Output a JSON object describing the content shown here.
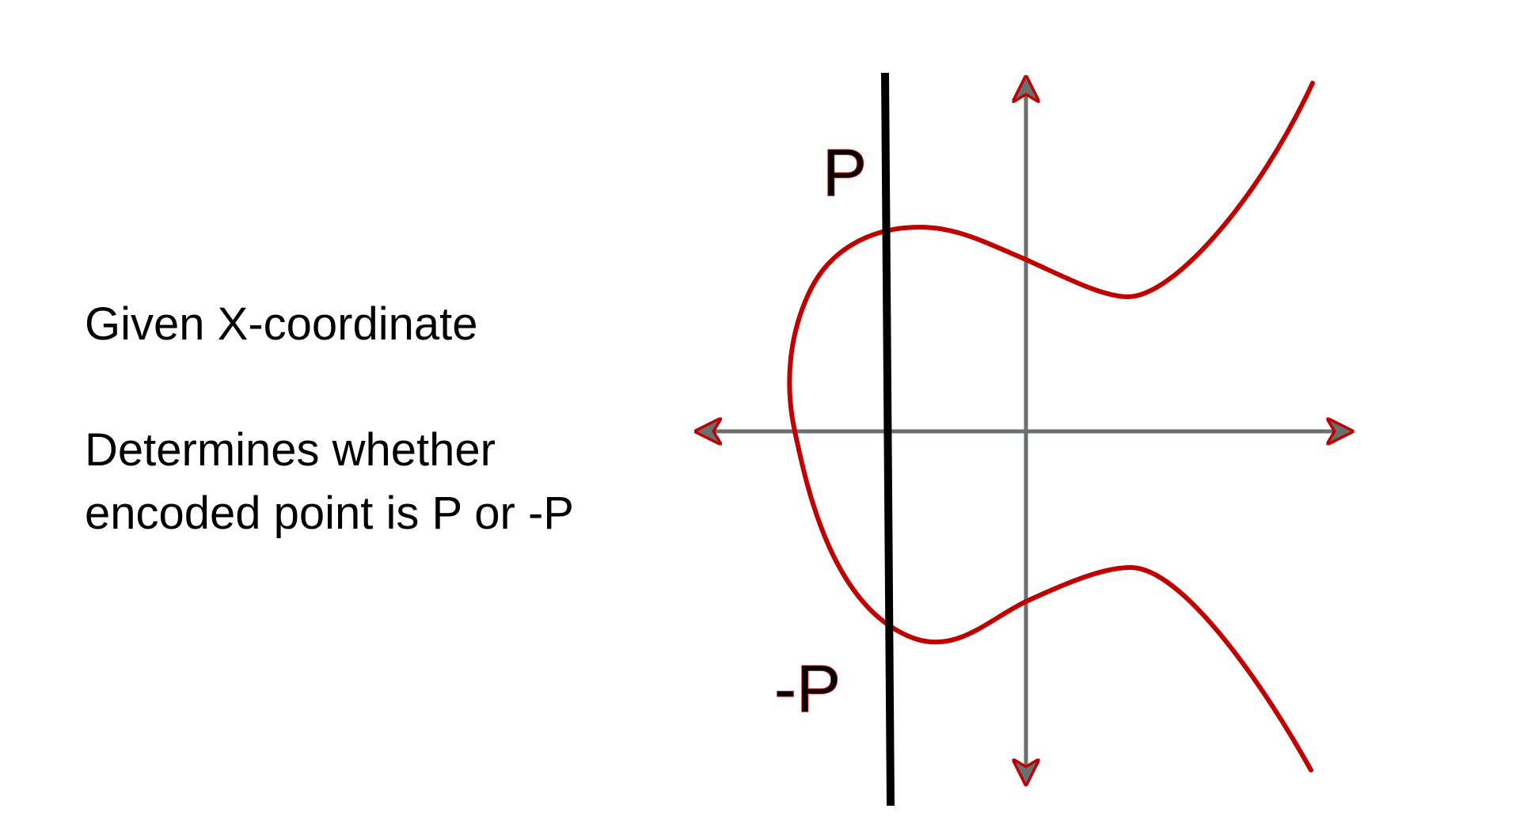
{
  "text": {
    "line1": "Given X-coordinate",
    "line2": "Determines whether",
    "line3": "encoded point is P or -P"
  },
  "labels": {
    "p": "P",
    "neg_p": "-P"
  },
  "colors": {
    "curve": "#c00000",
    "axis": "#6a6f6f",
    "vertical_line": "#000000",
    "text": "#000000",
    "background": "#ffffff"
  }
}
